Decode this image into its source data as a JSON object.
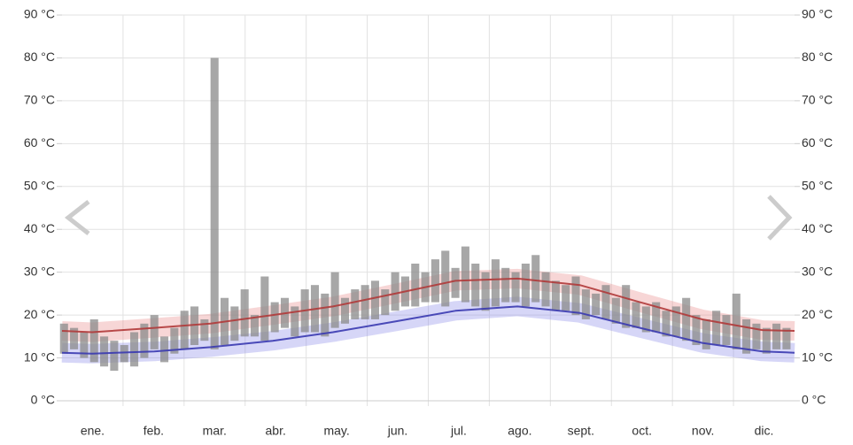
{
  "chart_data": {
    "type": "climate-range",
    "categories": [
      "ene.",
      "feb.",
      "mar.",
      "abr.",
      "may.",
      "jun.",
      "jul.",
      "ago.",
      "sept.",
      "oct.",
      "nov.",
      "dic."
    ],
    "xlim": [
      0,
      365
    ],
    "ylim": [
      0,
      90
    ],
    "yticks": [
      {
        "value": 0,
        "label": "0 °C"
      },
      {
        "value": 10,
        "label": "10 °C"
      },
      {
        "value": 20,
        "label": "20 °C"
      },
      {
        "value": 30,
        "label": "30 °C"
      },
      {
        "value": 40,
        "label": "40 °C"
      },
      {
        "value": 50,
        "label": "50 °C"
      },
      {
        "value": 60,
        "label": "60 °C"
      },
      {
        "value": 70,
        "label": "70 °C"
      },
      {
        "value": 80,
        "label": "80 °C"
      },
      {
        "value": 90,
        "label": "90 °C"
      }
    ],
    "y2lim": [
      0,
      90
    ],
    "y2ticks": [
      {
        "value": 0,
        "label": "0 °C"
      },
      {
        "value": 10,
        "label": "10 °C"
      },
      {
        "value": 20,
        "label": "20 °C"
      },
      {
        "value": 30,
        "label": "30 °C"
      },
      {
        "value": 40,
        "label": "40 °C"
      },
      {
        "value": 50,
        "label": "50 °C"
      },
      {
        "value": 60,
        "label": "60 °C"
      },
      {
        "value": 70,
        "label": "70 °C"
      },
      {
        "value": 80,
        "label": "80 °C"
      },
      {
        "value": 90,
        "label": "90 °C"
      }
    ],
    "grid": true,
    "avg_x": [
      0,
      15,
      46,
      74,
      105,
      135,
      166,
      196,
      227,
      258,
      288,
      319,
      349,
      365
    ],
    "avg_high": {
      "color": "#b03a3a",
      "band_color": "#e88a8a",
      "values": [
        16.3,
        16,
        17,
        18,
        20,
        22,
        25,
        28,
        28.5,
        27,
        23,
        19,
        16.5,
        16.3
      ]
    },
    "avg_low": {
      "color": "#3a3ab0",
      "band_color": "#8a8ae8",
      "values": [
        11.2,
        11,
        11.5,
        12.5,
        14,
        16,
        18.5,
        21,
        22,
        20.5,
        17,
        13.5,
        11.5,
        11.2
      ]
    },
    "observed": {
      "color": "#8a8a8a",
      "x": [
        1,
        6,
        11,
        16,
        21,
        26,
        31,
        36,
        41,
        46,
        51,
        56,
        61,
        66,
        71,
        76,
        81,
        86,
        91,
        96,
        101,
        106,
        111,
        116,
        121,
        126,
        131,
        136,
        141,
        146,
        151,
        156,
        161,
        166,
        171,
        176,
        181,
        186,
        191,
        196,
        201,
        206,
        211,
        216,
        221,
        226,
        231,
        236,
        241,
        246,
        251,
        256,
        261,
        266,
        271,
        276,
        281,
        286,
        291,
        296,
        301,
        306,
        311,
        316,
        321,
        326,
        331,
        336,
        341,
        346,
        351,
        356,
        361
      ],
      "max": [
        18,
        17,
        16,
        19,
        15,
        14,
        13,
        16,
        18,
        20,
        15,
        17,
        21,
        22,
        19,
        80,
        24,
        22,
        26,
        20,
        29,
        23,
        24,
        22,
        26,
        27,
        25,
        30,
        24,
        26,
        27,
        28,
        26,
        30,
        29,
        32,
        30,
        33,
        35,
        31,
        36,
        32,
        30,
        33,
        31,
        30,
        32,
        34,
        30,
        28,
        27,
        29,
        26,
        25,
        27,
        24,
        27,
        23,
        22,
        23,
        21,
        22,
        24,
        20,
        19,
        21,
        20,
        25,
        19,
        18,
        17,
        18,
        17
      ],
      "min": [
        11,
        12,
        10,
        9,
        8,
        7,
        9,
        8,
        10,
        12,
        9,
        11,
        12,
        13,
        14,
        12,
        13,
        14,
        15,
        15,
        14,
        16,
        17,
        15,
        16,
        16,
        15,
        17,
        18,
        19,
        19,
        19,
        20,
        21,
        22,
        22,
        23,
        23,
        22,
        24,
        23,
        22,
        21,
        22,
        23,
        23,
        22,
        23,
        22,
        21,
        21,
        20,
        19,
        20,
        19,
        18,
        17,
        17,
        16,
        16,
        15,
        15,
        14,
        13,
        12,
        13,
        13,
        12,
        11,
        12,
        11,
        12,
        12
      ]
    }
  }
}
